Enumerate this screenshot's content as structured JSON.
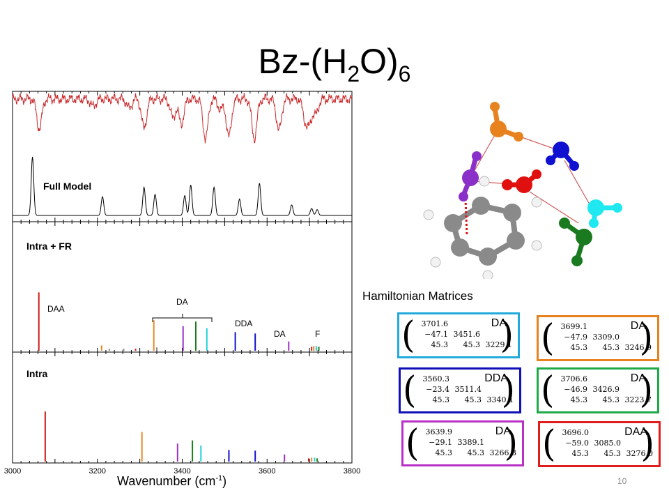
{
  "title": {
    "main": "Bz-(H",
    "sub1": "2",
    "mid": "O)",
    "sub2": "6"
  },
  "page_number": "10",
  "axis": {
    "title_main": "Wavenumber (cm",
    "title_sup": "-1",
    "title_end": ")"
  },
  "chart_data": [
    {
      "type": "line",
      "title": "Full Model",
      "xlim": [
        3000,
        3800
      ],
      "xticks": [
        "3000",
        "3200",
        "3400",
        "3600",
        "3800"
      ],
      "series": [
        {
          "color": "#c8282a",
          "kind": "experimental",
          "dips": [
            {
              "x": 3063,
              "depth": 0.72
            },
            {
              "x": 3190,
              "depth": 0.18
            },
            {
              "x": 3275,
              "depth": 0.22
            },
            {
              "x": 3310,
              "depth": 0.7
            },
            {
              "x": 3378,
              "depth": 0.45
            },
            {
              "x": 3398,
              "depth": 0.6
            },
            {
              "x": 3455,
              "depth": 0.95
            },
            {
              "x": 3490,
              "depth": 0.25
            },
            {
              "x": 3510,
              "depth": 0.9
            },
            {
              "x": 3570,
              "depth": 0.95
            },
            {
              "x": 3628,
              "depth": 0.75
            },
            {
              "x": 3690,
              "depth": 0.45
            },
            {
              "x": 3700,
              "depth": 0.5
            },
            {
              "x": 3715,
              "depth": 0.35
            }
          ]
        },
        {
          "color": "#000000",
          "kind": "theory",
          "peaks": [
            {
              "x": 3047,
              "h": 1.0
            },
            {
              "x": 3212,
              "h": 0.32
            },
            {
              "x": 3310,
              "h": 0.48
            },
            {
              "x": 3336,
              "h": 0.36
            },
            {
              "x": 3406,
              "h": 0.34
            },
            {
              "x": 3420,
              "h": 0.52
            },
            {
              "x": 3475,
              "h": 0.48
            },
            {
              "x": 3535,
              "h": 0.28
            },
            {
              "x": 3582,
              "h": 0.55
            },
            {
              "x": 3658,
              "h": 0.18
            },
            {
              "x": 3705,
              "h": 0.12
            },
            {
              "x": 3718,
              "h": 0.1
            }
          ]
        }
      ]
    },
    {
      "type": "bar",
      "title": "Intra + FR",
      "xlim": [
        3000,
        3800
      ],
      "annotations": [
        "DAA",
        "DA",
        "DDA",
        "DA",
        "F"
      ],
      "bars": [
        {
          "x": 3062,
          "h": 0.88,
          "color": "#cc1f1f"
        },
        {
          "x": 3210,
          "h": 0.08,
          "color": "#e88a2a"
        },
        {
          "x": 3228,
          "h": 0.03,
          "color": "#888888"
        },
        {
          "x": 3262,
          "h": 0.03,
          "color": "#888888"
        },
        {
          "x": 3290,
          "h": 0.03,
          "color": "#cc1f1f"
        },
        {
          "x": 3333,
          "h": 0.46,
          "color": "#e88a2a"
        },
        {
          "x": 3340,
          "h": 0.05,
          "color": "#888888"
        },
        {
          "x": 3402,
          "h": 0.37,
          "color": "#9b30c8"
        },
        {
          "x": 3432,
          "h": 0.44,
          "color": "#1e7b1e"
        },
        {
          "x": 3458,
          "h": 0.34,
          "color": "#20d0d8"
        },
        {
          "x": 3525,
          "h": 0.28,
          "color": "#1010cc"
        },
        {
          "x": 3572,
          "h": 0.26,
          "color": "#1010cc"
        },
        {
          "x": 3651,
          "h": 0.14,
          "color": "#9b30c8"
        },
        {
          "x": 3705,
          "h": 0.06,
          "color": "#cc1f1f"
        },
        {
          "x": 3710,
          "h": 0.07,
          "color": "#e88a2a"
        },
        {
          "x": 3716,
          "h": 0.07,
          "color": "#20d0d8"
        },
        {
          "x": 3722,
          "h": 0.06,
          "color": "#1e7b1e"
        }
      ]
    },
    {
      "type": "bar",
      "title": "Intra",
      "xlim": [
        3000,
        3800
      ],
      "bars": [
        {
          "x": 3077,
          "h": 0.78,
          "color": "#cc1f1f"
        },
        {
          "x": 3305,
          "h": 0.46,
          "color": "#e88a2a"
        },
        {
          "x": 3389,
          "h": 0.28,
          "color": "#9b30c8"
        },
        {
          "x": 3424,
          "h": 0.33,
          "color": "#1e7b1e"
        },
        {
          "x": 3444,
          "h": 0.25,
          "color": "#20d0d8"
        },
        {
          "x": 3510,
          "h": 0.18,
          "color": "#1010cc"
        },
        {
          "x": 3572,
          "h": 0.17,
          "color": "#1010cc"
        },
        {
          "x": 3641,
          "h": 0.11,
          "color": "#9b30c8"
        },
        {
          "x": 3698,
          "h": 0.05,
          "color": "#cc1f1f"
        },
        {
          "x": 3705,
          "h": 0.06,
          "color": "#e88a2a"
        },
        {
          "x": 3712,
          "h": 0.06,
          "color": "#20d0d8"
        },
        {
          "x": 3718,
          "h": 0.05,
          "color": "#1e7b1e"
        }
      ]
    }
  ],
  "hamiltonian": {
    "title": "Hamiltonian Matrices",
    "matrices": [
      {
        "label": "DA",
        "color": "#22aadd",
        "rows": [
          [
            "3701.6",
            "",
            ""
          ],
          [
            "−47.1",
            "3451.6",
            ""
          ],
          [
            "45.3",
            "45.3",
            "3229.1"
          ]
        ]
      },
      {
        "label": "DA",
        "color": "#e8821e",
        "rows": [
          [
            "3699.1",
            "",
            ""
          ],
          [
            "−47.9",
            "3309.0",
            ""
          ],
          [
            "45.3",
            "45.3",
            "3246.9"
          ]
        ]
      },
      {
        "label": "DDA",
        "color": "#1010b8",
        "rows": [
          [
            "3560.3",
            "",
            ""
          ],
          [
            "−23.4",
            "3511.4",
            ""
          ],
          [
            "45.3",
            "45.3",
            "3340.1"
          ]
        ]
      },
      {
        "label": "DA",
        "color": "#1faa4a",
        "rows": [
          [
            "3706.6",
            "",
            ""
          ],
          [
            "−46.9",
            "3426.9",
            ""
          ],
          [
            "45.3",
            "45.3",
            "3223.7"
          ]
        ]
      },
      {
        "label": "DA",
        "color": "#b830c8",
        "rows": [
          [
            "3639.9",
            "",
            ""
          ],
          [
            "−29.1",
            "3389.1",
            ""
          ],
          [
            "45.3",
            "45.3",
            "3266.3"
          ]
        ]
      },
      {
        "label": "DAA",
        "color": "#e01c1c",
        "rows": [
          [
            "3696.0",
            "",
            ""
          ],
          [
            "−59.0",
            "3085.0",
            ""
          ],
          [
            "45.3",
            "45.3",
            "3276.0"
          ]
        ]
      }
    ]
  },
  "colors": {
    "oxygen_orange": "#e8821e",
    "oxygen_blue": "#1010d0",
    "oxygen_purple": "#8a30c8",
    "oxygen_red": "#e01010",
    "oxygen_cyan": "#20e8f0",
    "oxygen_green": "#1a7a20",
    "carbon": "#808080",
    "hydrogen": "#f4f4f4"
  }
}
